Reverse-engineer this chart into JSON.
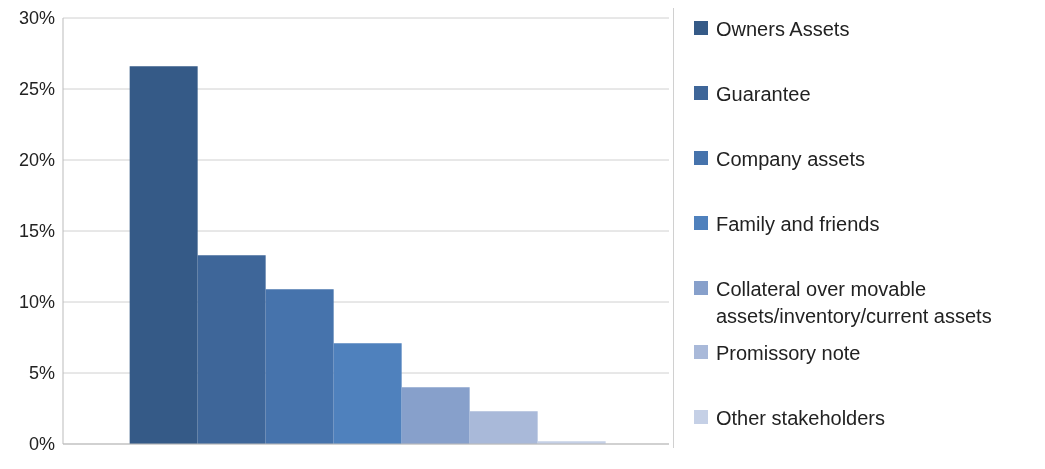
{
  "chart_data": {
    "type": "bar",
    "categories": [
      null
    ],
    "series": [
      {
        "name": "Owners Assets",
        "color": "#355a87",
        "values": [
          26.6
        ]
      },
      {
        "name": "Guarantee",
        "color": "#3e6699",
        "values": [
          13.3
        ]
      },
      {
        "name": "Company assets",
        "color": "#4673ac",
        "values": [
          10.9
        ]
      },
      {
        "name": "Family and friends",
        "color": "#4f81bd",
        "values": [
          7.1
        ]
      },
      {
        "name": "Collateral over movable assets/inventory/current assets",
        "color": "#87a0cb",
        "values": [
          4.0
        ]
      },
      {
        "name": "Promissory note",
        "color": "#a9b9d9",
        "values": [
          2.3
        ]
      },
      {
        "name": "Other stakeholders",
        "color": "#c5d0e6",
        "values": [
          0.2
        ]
      }
    ],
    "ylim": [
      0,
      30
    ],
    "yticks": [
      {
        "value": 0,
        "label": "0%"
      },
      {
        "value": 5,
        "label": "5%"
      },
      {
        "value": 10,
        "label": "10%"
      },
      {
        "value": 15,
        "label": "15%"
      },
      {
        "value": 20,
        "label": "20%"
      },
      {
        "value": 25,
        "label": "25%"
      },
      {
        "value": 30,
        "label": "30%"
      }
    ],
    "grid": "y",
    "legend": "right"
  }
}
